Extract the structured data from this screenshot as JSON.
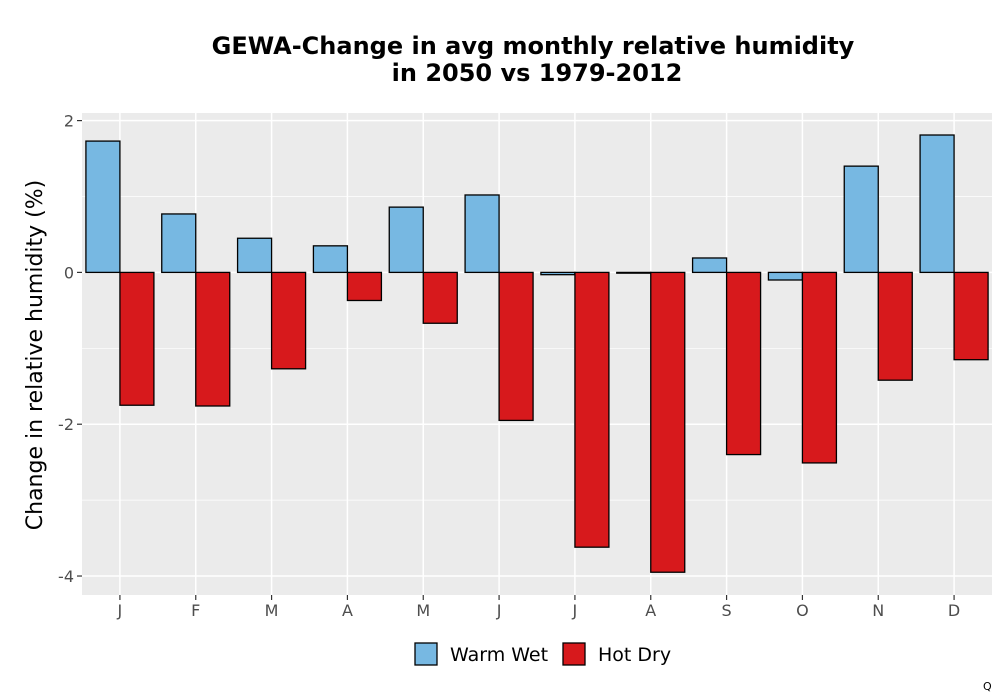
{
  "chart_data": {
    "type": "bar",
    "title": [
      "GEWA-Change in avg monthly relative humidity",
      "in 2050 vs 1979-2012"
    ],
    "xlabel": "",
    "ylabel": "Change in relative humidity (%)",
    "categories": [
      "J",
      "F",
      "M",
      "A",
      "M",
      "J",
      "J",
      "A",
      "S",
      "O",
      "N",
      "D"
    ],
    "series": [
      {
        "name": "Warm Wet",
        "color": "#77b8e2",
        "values": [
          1.73,
          0.77,
          0.45,
          0.35,
          0.86,
          1.02,
          -0.03,
          -0.01,
          0.19,
          -0.1,
          1.4,
          1.81
        ]
      },
      {
        "name": "Hot Dry",
        "color": "#d7191c",
        "values": [
          -1.75,
          -1.76,
          -1.27,
          -0.37,
          -0.67,
          -1.95,
          -3.62,
          -3.95,
          -2.4,
          -2.51,
          -1.42,
          -1.15
        ]
      }
    ],
    "ylim": [
      -4.25,
      2.1
    ],
    "yticks": [
      -4,
      -2,
      0,
      2
    ],
    "ytick_labels": [
      "-4",
      "-2",
      "0",
      "2"
    ],
    "grid": true,
    "legend_position": "bottom"
  },
  "corner_mark": "Q"
}
